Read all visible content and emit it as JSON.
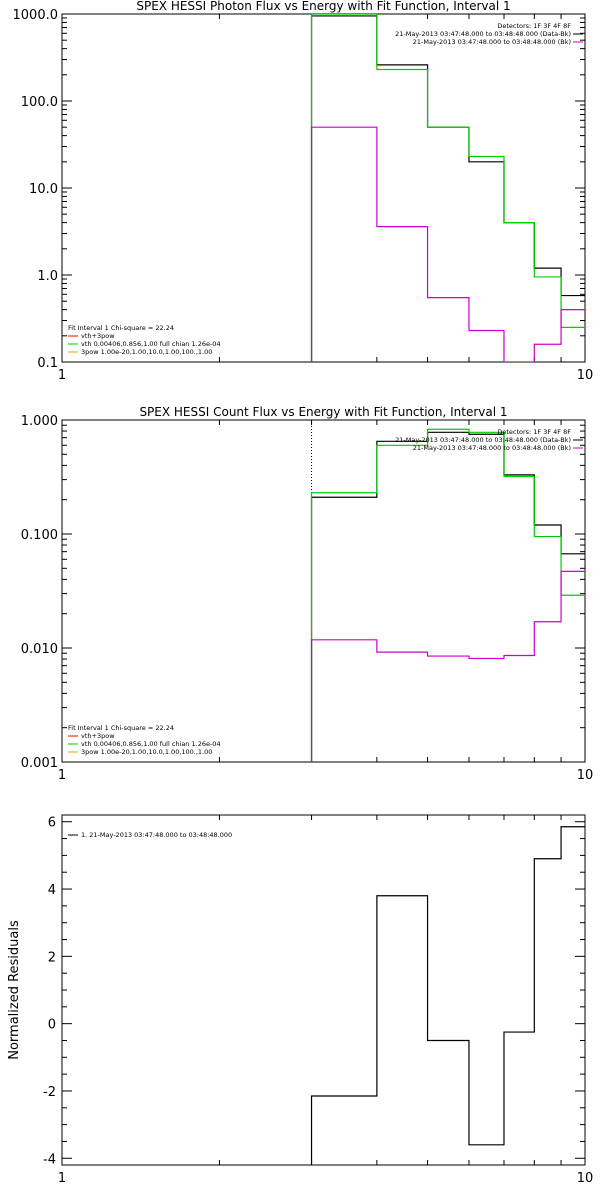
{
  "chart_data": [
    {
      "type": "line",
      "title": "SPEX HESSI Photon Flux vs Energy with Fit Function, Interval 1",
      "xscale": "log",
      "yscale": "log",
      "xlim": [
        1,
        10
      ],
      "ylim": [
        0.1,
        1000
      ],
      "xticks": [
        "1",
        "10"
      ],
      "yticks": [
        "0.1",
        "1.0",
        "10.0",
        "100.0",
        "1000.0"
      ],
      "legend_right": {
        "position": "top-right",
        "lines": [
          {
            "text": "Detectors: 1F 3F 4F 8F",
            "color": "#000000"
          },
          {
            "text": "21-May-2013 03:47:48.000 to 03:48:48.000 (Data-Bk)",
            "color": "#000000"
          },
          {
            "text": "21-May-2013 03:47:48.000 to 03:48:48.000 (Bk)",
            "color": "#cc00cc"
          }
        ]
      },
      "legend_left": {
        "position": "bottom-left",
        "lines": [
          {
            "text": "Fit Interval 1    Chi-square = 22.24",
            "color": "#000000"
          },
          {
            "text": "vth+3pow",
            "color": "#ff0000"
          },
          {
            "text": "vth 0.00406,0.856,1.00   full chian 1.26e-04",
            "color": "#00cc00"
          },
          {
            "text": "3pow 1.00e-20,1.00,10.0,1.00,100.,1.00",
            "color": "#ff9900"
          }
        ]
      },
      "vline_x": 3,
      "edges": [
        3,
        4,
        5,
        6,
        7,
        8,
        9,
        10
      ],
      "series": [
        {
          "color": "#000000",
          "values": [
            950,
            260,
            50,
            20,
            4,
            1.2,
            0.58
          ]
        },
        {
          "color": "#00cc00",
          "values": [
            1000,
            230,
            50,
            23,
            4,
            0.95,
            0.25
          ]
        },
        {
          "color": "#cc00cc",
          "values": [
            50,
            3.6,
            0.55,
            0.23,
            0.1,
            0.16,
            0.4
          ]
        }
      ]
    },
    {
      "type": "line",
      "title": "SPEX HESSI Count Flux vs Energy with Fit Function, Interval 1",
      "xscale": "log",
      "yscale": "log",
      "xlim": [
        1,
        10
      ],
      "ylim": [
        0.001,
        1
      ],
      "xticks": [
        "1",
        "10"
      ],
      "yticks": [
        "0.001",
        "0.010",
        "0.100",
        "1.000"
      ],
      "legend_right": {
        "position": "top-right",
        "lines": [
          {
            "text": "Detectors: 1F 3F 4F 8F",
            "color": "#000000"
          },
          {
            "text": "21-May-2013 03:47:48.000 to 03:48:48.000 (Data-Bk)",
            "color": "#000000"
          },
          {
            "text": "21-May-2013 03:47:48.000 to 03:48:48.000 (Bk)",
            "color": "#cc00cc"
          }
        ]
      },
      "legend_left": {
        "position": "bottom-left",
        "lines": [
          {
            "text": "Fit Interval 1    Chi-square = 22.24",
            "color": "#000000"
          },
          {
            "text": "vth+3pow",
            "color": "#ff0000"
          },
          {
            "text": "vth 0.00406,0.856,1.00   full chian 1.26e-04",
            "color": "#00cc00"
          },
          {
            "text": "3pow 1.00e-20,1.00,10.0,1.00,100.,1.00",
            "color": "#ff9900"
          }
        ]
      },
      "vline_x": 3,
      "edges": [
        3,
        4,
        5,
        6,
        7,
        8,
        9,
        10
      ],
      "series": [
        {
          "color": "#000000",
          "values": [
            0.21,
            0.65,
            0.78,
            0.75,
            0.33,
            0.12,
            0.067
          ]
        },
        {
          "color": "#00cc00",
          "values": [
            0.23,
            0.6,
            0.83,
            0.78,
            0.32,
            0.095,
            0.029
          ]
        },
        {
          "color": "#cc00cc",
          "values": [
            0.0118,
            0.0092,
            0.0085,
            0.0081,
            0.0086,
            0.017,
            0.047
          ]
        }
      ]
    },
    {
      "type": "line",
      "title": "",
      "xscale": "log",
      "yscale": "linear",
      "xlim": [
        1,
        10
      ],
      "ylim": [
        -4.2,
        6.2
      ],
      "ylabel": "Normalized Residuals",
      "xticks": [
        "1",
        "10"
      ],
      "yticks": [
        "-4",
        "-2",
        "0",
        "2",
        "4",
        "6"
      ],
      "ytick_values": [
        -4,
        -2,
        0,
        2,
        4,
        6
      ],
      "legend_left": {
        "position": "top-left",
        "lines": [
          {
            "text": "1. 21-May-2013 03:47:48.000 to 03:48:48.000",
            "color": "#000000"
          }
        ]
      },
      "edges": [
        3,
        4,
        5,
        6,
        7,
        8,
        9,
        10
      ],
      "series": [
        {
          "color": "#000000",
          "values": [
            -2.15,
            3.8,
            -0.5,
            -3.6,
            -0.25,
            4.9,
            5.85
          ]
        }
      ]
    }
  ]
}
